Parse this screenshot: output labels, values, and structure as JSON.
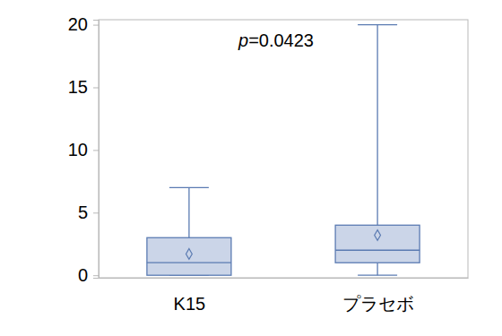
{
  "chart_data": {
    "type": "box",
    "categories": [
      "K15",
      "プラセボ"
    ],
    "boxes": [
      {
        "min": 0,
        "q1": 0,
        "median": 1,
        "q3": 3,
        "max": 7,
        "mean": 1.7
      },
      {
        "min": 0,
        "q1": 1,
        "median": 2,
        "q3": 4,
        "max": 20,
        "mean": 3.2
      }
    ],
    "color": "#cbd5e8",
    "marker": "diamond",
    "ylim": [
      -0.2,
      20.4
    ],
    "yticks": [
      0,
      5,
      10,
      15,
      20
    ],
    "annotations": [
      {
        "text": "p=0.0423"
      }
    ]
  }
}
